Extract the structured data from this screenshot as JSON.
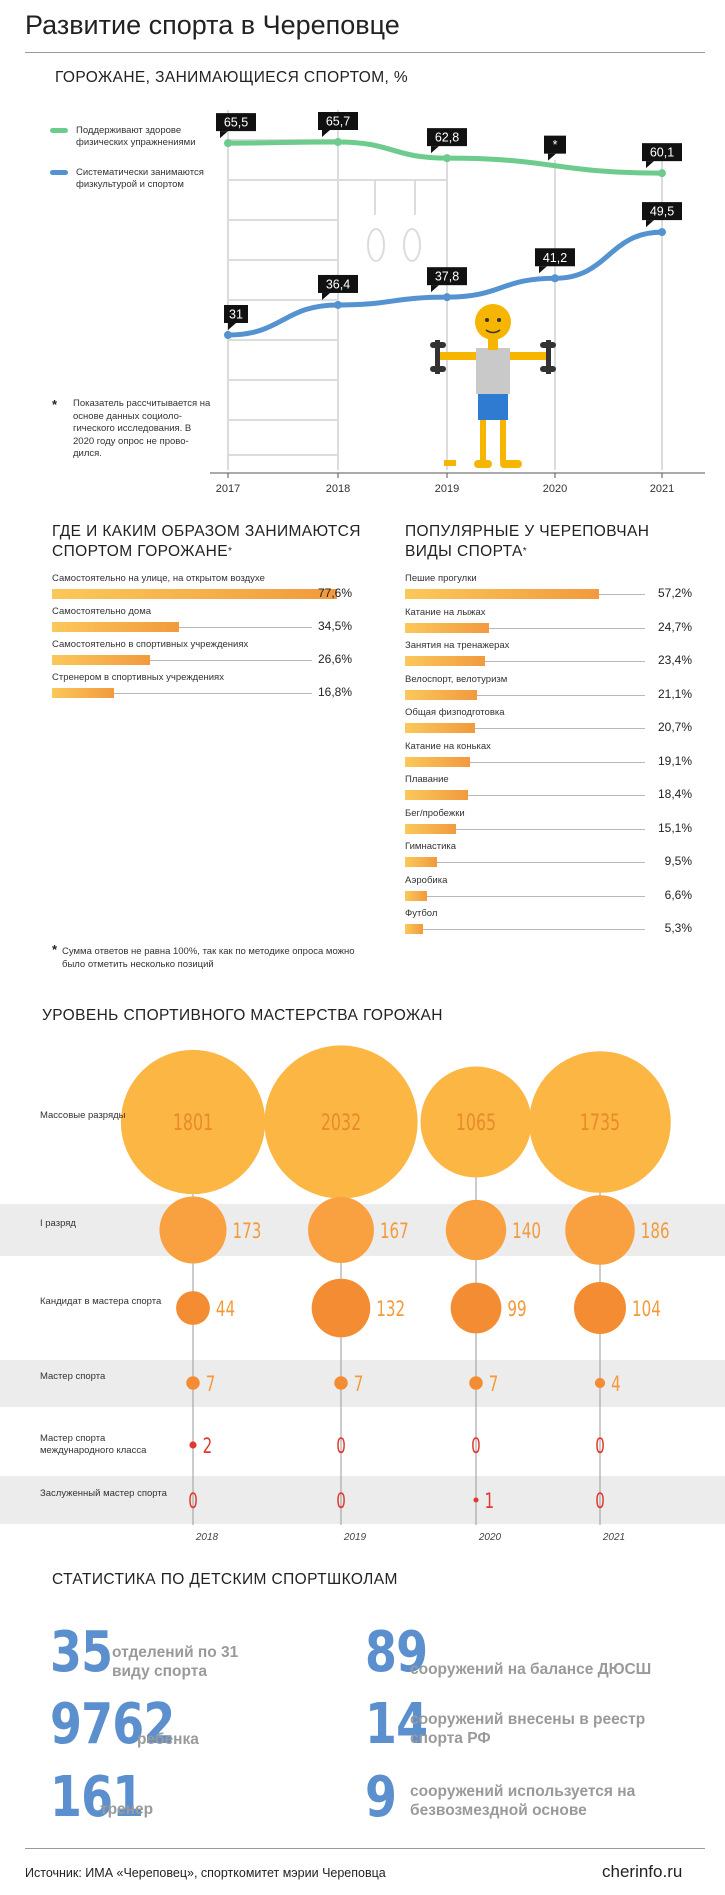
{
  "page": {
    "title": "Развитие спорта в Череповце",
    "source": "Источник: ИМА «Череповец», спорткомитет мэрии Череповца",
    "site": "cherinfo.ru"
  },
  "colors": {
    "green": "#6ccb8d",
    "blue": "#5592d0",
    "orange_light": "#fbc85a",
    "orange_dark": "#f19a3e",
    "bubble_light": "#fcb644",
    "bubble_mid": "#f9a140",
    "bubble_dark": "#f48c33",
    "red": "#e03a30",
    "num_blue": "#5c8fce",
    "gray_text": "#9a9a9a"
  },
  "line_section": {
    "title": "ГОРОЖАНЕ, ЗАНИМАЮЩИЕСЯ СПОРТОМ, %",
    "legend": [
      "Поддерживают здорове физических упражнениями",
      "Систематически занимаются физкультурой и спортом"
    ],
    "note_marker": "*",
    "note": "Показатель рассчитывается на основе данных социоло-гического исследования. В 2020 году опрос не прово-дился.",
    "gap_marker": "*"
  },
  "places_section": {
    "title": "ГДЕ И КАКИМ ОБРАЗОМ ЗАНИМАЮТСЯ СПОРТОМ ГОРОЖАНЕ",
    "title_mark": "*"
  },
  "sports_section": {
    "title": "ПОПУЛЯРНЫЕ У ЧЕРЕПОВЧАН ВИДЫ СПОРТА",
    "title_mark": "*"
  },
  "footnote": {
    "mark": "*",
    "text": "Сумма ответов не равна 100%, так как по методике опроса можно было отметить несколько позиций"
  },
  "levels_section": {
    "title": "УРОВЕНЬ СПОРТИВНОГО МАСТЕРСТВА ГОРОЖАН"
  },
  "schools_section": {
    "title": "СТАТИСТИКА ПО ДЕТСКИМ СПОРТШКОЛАМ",
    "left": [
      {
        "num": "35",
        "text": "отделений по 31 виду спорта"
      },
      {
        "num": "9762",
        "text": "ребенка"
      },
      {
        "num": "161",
        "text": "тренер"
      }
    ],
    "right": [
      {
        "num": "89",
        "text": "сооружений на балансе ДЮСШ"
      },
      {
        "num": "14",
        "text": "сооружений внесены в реестр спорта РФ"
      },
      {
        "num": "9",
        "text": "сооружений используется на безвозмездной основе"
      }
    ]
  },
  "chart_data": [
    {
      "type": "line",
      "title": "ГОРОЖАНЕ, ЗАНИМАЮЩИЕСЯ СПОРТОМ, %",
      "x": [
        "2017",
        "2018",
        "2019",
        "2020",
        "2021"
      ],
      "series": [
        {
          "name": "Поддерживают здорове физических упражнениями",
          "color": "#6ccb8d",
          "values": [
            65.5,
            65.7,
            62.8,
            null,
            60.1
          ],
          "labels": [
            "65,5",
            "65,7",
            "62,8",
            "*",
            "60,1"
          ]
        },
        {
          "name": "Систематически занимаются физкультурой и спортом",
          "color": "#5592d0",
          "values": [
            31,
            36.4,
            37.8,
            41.2,
            49.5
          ],
          "labels": [
            "31",
            "36,4",
            "37,8",
            "41,2",
            "49,5"
          ]
        }
      ]
    },
    {
      "type": "bar",
      "title": "ГДЕ И КАКИМ ОБРАЗОМ ЗАНИМАЮТСЯ СПОРТОМ ГОРОЖАНЕ",
      "categories": [
        "Самостоятельно на улице, на открытом воздухе",
        "Самостоятельно дома",
        "Самостоятельно в спортивных учреждениях",
        "Стренером в спортивных учреждениях"
      ],
      "values": [
        77.6,
        34.5,
        26.6,
        16.8
      ],
      "labels": [
        "77,6%",
        "34,5%",
        "26,6%",
        "16,8%"
      ]
    },
    {
      "type": "bar",
      "title": "ПОПУЛЯРНЫЕ У ЧЕРЕПОВЧАН ВИДЫ СПОРТА",
      "categories": [
        "Пешие прогулки",
        "Катание на лыжах",
        "Занятия на тренажерах",
        "Велоспорт, велотуризм",
        "Общая физподготовка",
        "Катание на коньках",
        "Плавание",
        "Бег/пробежки",
        "Гимнастика",
        "Аэробика",
        "Футбол"
      ],
      "values": [
        57.2,
        24.7,
        23.4,
        21.1,
        20.7,
        19.1,
        18.4,
        15.1,
        9.5,
        6.6,
        5.3
      ],
      "labels": [
        "57,2%",
        "24,7%",
        "23,4%",
        "21,1%",
        "20,7%",
        "19,1%",
        "18,4%",
        "15,1%",
        "9,5%",
        "6,6%",
        "5,3%"
      ]
    },
    {
      "type": "scatter",
      "title": "УРОВЕНЬ СПОРТИВНОГО МАСТЕРСТВА ГОРОЖАН",
      "x": [
        "2018",
        "2019",
        "2020",
        "2021"
      ],
      "rows": [
        {
          "label": "Массовые разряды",
          "values": [
            1801,
            2032,
            1065,
            1735
          ],
          "color": "#fcb644",
          "band": false
        },
        {
          "label": "I разряд",
          "values": [
            173,
            167,
            140,
            186
          ],
          "color": "#f9a140",
          "band": true
        },
        {
          "label": "Кандидат в мастера спорта",
          "values": [
            44,
            132,
            99,
            104
          ],
          "color": "#f48c33",
          "band": false
        },
        {
          "label": "Мастер спорта",
          "values": [
            7,
            7,
            7,
            4
          ],
          "color": "#f48c33",
          "band": true
        },
        {
          "label": "Мастер спорта международного класса",
          "values": [
            2,
            0,
            0,
            0
          ],
          "color": "#e03a30",
          "band": false
        },
        {
          "label": "Заслуженный мастер спорта",
          "values": [
            0,
            0,
            1,
            0
          ],
          "color": "#e03a30",
          "band": true
        }
      ]
    }
  ]
}
